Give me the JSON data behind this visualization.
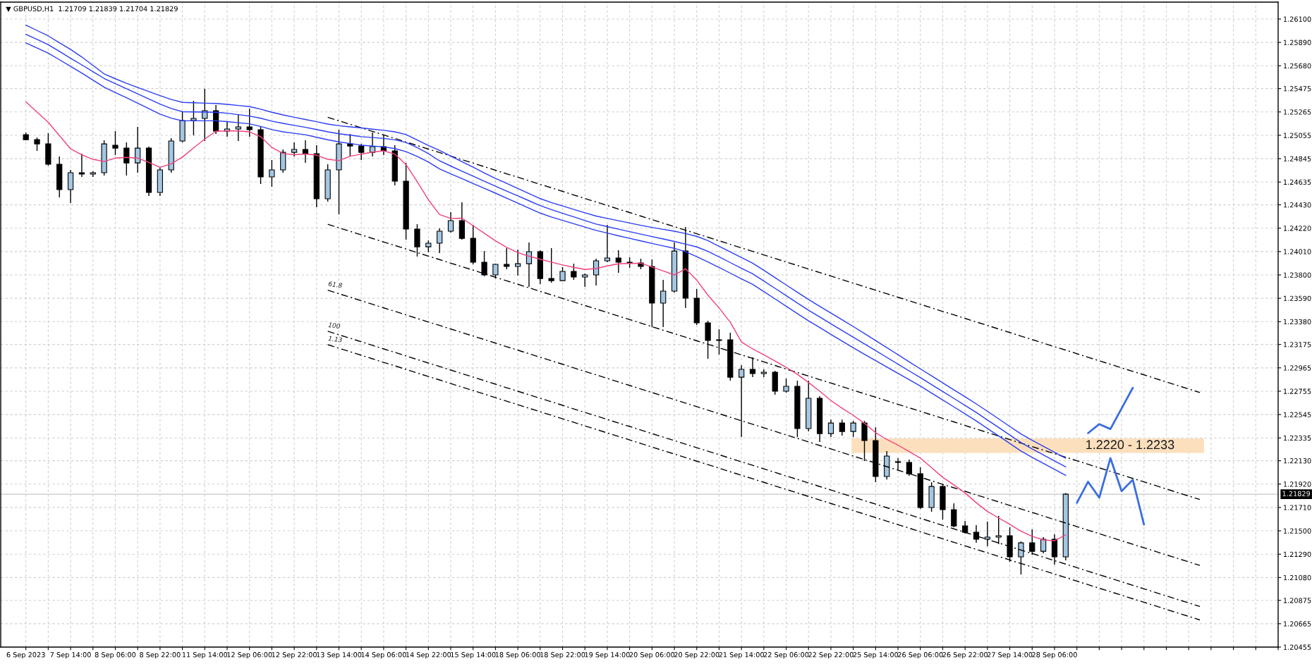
{
  "chart_data": {
    "type": "candlestick",
    "title": "▼ GBPUSD,H1  1.21709 1.21839 1.21704 1.21829",
    "categories": [
      "6 Sep 2023",
      null,
      null,
      null,
      "7 Sep 14:00",
      null,
      null,
      null,
      "8 Sep 06:00",
      null,
      null,
      null,
      "8 Sep 22:00",
      null,
      null,
      null,
      "11 Sep 14:00",
      null,
      null,
      null,
      "12 Sep 06:00",
      null,
      null,
      null,
      "12 Sep 22:00",
      null,
      null,
      null,
      "13 Sep 14:00",
      null,
      null,
      null,
      "14 Sep 06:00",
      null,
      null,
      null,
      "14 Sep 22:00",
      null,
      null,
      null,
      "15 Sep 14:00",
      null,
      null,
      null,
      "18 Sep 06:00",
      null,
      null,
      null,
      "18 Sep 22:00",
      null,
      null,
      null,
      "19 Sep 14:00",
      null,
      null,
      null,
      "20 Sep 06:00",
      null,
      null,
      null,
      "20 Sep 22:00",
      null,
      null,
      null,
      "21 Sep 14:00",
      null,
      null,
      null,
      "22 Sep 06:00",
      null,
      null,
      null,
      "22 Sep 22:00",
      null,
      null,
      null,
      "25 Sep 14:00",
      null,
      null,
      null,
      "26 Sep 06:00",
      null,
      null,
      null,
      "26 Sep 22:00",
      null,
      null,
      null,
      "27 Sep 14:00",
      null,
      null,
      null,
      "28 Sep 06:00",
      null,
      null,
      null,
      null,
      null,
      null,
      null,
      null,
      null,
      null,
      null,
      null,
      null,
      null,
      null,
      null,
      null,
      null,
      null,
      null
    ],
    "ylim": [
      1.20455,
      1.26252
    ],
    "yticks": [
      {
        "value": 1.261,
        "label": "1.26100"
      },
      {
        "value": 1.2589,
        "label": "1.25890"
      },
      {
        "value": 1.2568,
        "label": "1.25680"
      },
      1.25475,
      1.25265,
      1.25055,
      1.24845,
      1.24635,
      {
        "value": 1.2443,
        "label": "1.24430"
      },
      {
        "value": 1.2422,
        "label": "1.24220"
      },
      {
        "value": 1.2401,
        "label": "1.24010"
      },
      {
        "value": 1.238,
        "label": "1.23800"
      },
      {
        "value": 1.2359,
        "label": "1.23590"
      },
      {
        "value": 1.2338,
        "label": "1.23380"
      },
      1.23175,
      1.22965,
      1.22755,
      1.22545,
      1.22335,
      {
        "value": 1.2213,
        "label": "1.22130"
      },
      {
        "value": 1.2192,
        "label": "1.21920"
      },
      {
        "value": 1.2171,
        "label": "1.21710"
      },
      {
        "value": 1.215,
        "label": "1.21500"
      },
      {
        "value": 1.2129,
        "label": "1.21290"
      },
      {
        "value": 1.2108,
        "label": "1.21080"
      },
      1.20875,
      1.20665,
      1.20455
    ],
    "grid": true,
    "series": [
      {
        "ohlc": [
          [
            1.25061,
            1.2508,
            1.2501,
            1.25016
          ],
          [
            1.25016,
            1.25035,
            1.24915,
            1.24978
          ],
          [
            1.24978,
            1.25074,
            1.24782,
            1.24795
          ],
          [
            1.24795,
            1.24864,
            1.24497,
            1.24567
          ],
          [
            1.24567,
            1.24744,
            1.24446,
            1.24719
          ],
          [
            1.24719,
            1.2489,
            1.24681,
            1.24706
          ],
          [
            1.24706,
            1.24731,
            1.24681,
            1.24719
          ],
          [
            1.24719,
            1.2501,
            1.24693,
            1.24978
          ],
          [
            1.24966,
            1.25093,
            1.24877,
            1.2494
          ],
          [
            1.2494,
            1.24991,
            1.24693,
            1.24807
          ],
          [
            1.24807,
            1.25131,
            1.24719,
            1.2494
          ],
          [
            1.2494,
            1.24953,
            1.2451,
            1.24541
          ],
          [
            1.24541,
            1.24763,
            1.2451,
            1.24744
          ],
          [
            1.24744,
            1.25029,
            1.24719,
            1.25004
          ],
          [
            1.25004,
            1.25264,
            1.24991,
            1.25188
          ],
          [
            1.25188,
            1.25365,
            1.25054,
            1.25207
          ],
          [
            1.25207,
            1.25473,
            1.25004,
            1.25276
          ],
          [
            1.25276,
            1.25327,
            1.25067,
            1.25093
          ],
          [
            1.25093,
            1.25175,
            1.25042,
            1.25112
          ],
          [
            1.25112,
            1.25238,
            1.25004,
            1.25131
          ],
          [
            1.25131,
            1.25295,
            1.25042,
            1.25105
          ],
          [
            1.25105,
            1.25131,
            1.24617,
            1.24681
          ],
          [
            1.24681,
            1.24833,
            1.24592,
            1.24744
          ],
          [
            1.24744,
            1.24928,
            1.24719,
            1.24902
          ],
          [
            1.24902,
            1.24991,
            1.24864,
            1.24928
          ],
          [
            1.24928,
            1.2501,
            1.24807,
            1.2489
          ],
          [
            1.2489,
            1.24966,
            1.24408,
            1.24484
          ],
          [
            1.24484,
            1.24795,
            1.24459,
            1.24744
          ],
          [
            1.24744,
            1.25105,
            1.24345,
            1.24978
          ],
          [
            1.24978,
            1.25067,
            1.24864,
            1.24959
          ],
          [
            1.24959,
            1.24978,
            1.24833,
            1.24902
          ],
          [
            1.24902,
            1.2508,
            1.24864,
            1.24953
          ],
          [
            1.24953,
            1.25061,
            1.24877,
            1.24915
          ],
          [
            1.24915,
            1.24966,
            1.24605,
            1.24643
          ],
          [
            1.24643,
            1.24807,
            1.24117,
            1.24212
          ],
          [
            1.24212,
            1.24256,
            1.23965,
            1.24053
          ],
          [
            1.24053,
            1.2411,
            1.24003,
            1.24085
          ],
          [
            1.24085,
            1.24218,
            1.23996,
            1.24193
          ],
          [
            1.24193,
            1.24364,
            1.2418,
            1.24288
          ],
          [
            1.24288,
            1.24453,
            1.24117,
            1.24129
          ],
          [
            1.24129,
            1.2425,
            1.23895,
            1.23914
          ],
          [
            1.23914,
            1.24015,
            1.23787,
            1.238
          ],
          [
            1.238,
            1.23901,
            1.23768,
            1.23895
          ],
          [
            1.23895,
            1.24041,
            1.23851,
            1.23876
          ],
          [
            1.23876,
            1.24028,
            1.23794,
            1.23901
          ],
          [
            1.23901,
            1.24091,
            1.23692,
            1.24009
          ],
          [
            1.24009,
            1.24022,
            1.23718,
            1.23768
          ],
          [
            1.23768,
            1.24041,
            1.2373,
            1.23749
          ],
          [
            1.23749,
            1.2387,
            1.23743,
            1.23832
          ],
          [
            1.23832,
            1.23901,
            1.23756,
            1.23781
          ],
          [
            1.23781,
            1.23813,
            1.23692,
            1.238
          ],
          [
            1.238,
            1.23946,
            1.23705,
            1.23927
          ],
          [
            1.23927,
            1.2425,
            1.23914,
            1.23952
          ],
          [
            1.23952,
            1.24022,
            1.23819,
            1.23914
          ],
          [
            1.23914,
            1.23958,
            1.23863,
            1.23908
          ],
          [
            1.23908,
            1.23946,
            1.23851,
            1.23876
          ],
          [
            1.23876,
            1.23939,
            1.23331,
            1.23547
          ],
          [
            1.23547,
            1.23756,
            1.23331,
            1.23654
          ],
          [
            1.23654,
            1.24091,
            1.23642,
            1.24015
          ],
          [
            1.24015,
            1.24231,
            1.23502,
            1.23591
          ],
          [
            1.23591,
            1.23673,
            1.2335,
            1.23369
          ],
          [
            1.23369,
            1.23388,
            1.23046,
            1.23211
          ],
          [
            1.23211,
            1.23312,
            1.23084,
            1.23217
          ],
          [
            1.23217,
            1.2328,
            1.2285,
            1.22881
          ],
          [
            1.22881,
            1.22989,
            1.22343,
            1.22951
          ],
          [
            1.22951,
            1.23059,
            1.22881,
            1.22913
          ],
          [
            1.22913,
            1.22951,
            1.22881,
            1.22926
          ],
          [
            1.22926,
            1.22938,
            1.22723,
            1.22755
          ],
          [
            1.22755,
            1.22869,
            1.22742,
            1.22799
          ],
          [
            1.22799,
            1.2285,
            1.22343,
            1.22419
          ],
          [
            1.22419,
            1.2285,
            1.22393,
            1.22691
          ],
          [
            1.22691,
            1.2271,
            1.22298,
            1.22374
          ],
          [
            1.22374,
            1.225,
            1.22343,
            1.22469
          ],
          [
            1.22469,
            1.225,
            1.22355,
            1.22393
          ],
          [
            1.22393,
            1.22488,
            1.22343,
            1.22469
          ],
          [
            1.22469,
            1.22488,
            1.22127,
            1.22311
          ],
          [
            1.22311,
            1.22431,
            1.21937,
            1.21988
          ],
          [
            1.21988,
            1.22216,
            1.21962,
            1.22172
          ],
          [
            1.22121,
            1.22153,
            1.22051,
            1.22115
          ],
          [
            1.22115,
            1.2214,
            1.21994,
            1.22013
          ],
          [
            1.22013,
            1.2207,
            1.21696,
            1.21709
          ],
          [
            1.21709,
            1.21937,
            1.21671,
            1.21899
          ],
          [
            1.21899,
            1.21918,
            1.21601,
            1.2169
          ],
          [
            1.2169,
            1.21747,
            1.21532,
            1.21544
          ],
          [
            1.21544,
            1.21589,
            1.21475,
            1.21487
          ],
          [
            1.21487,
            1.21551,
            1.21392,
            1.21424
          ],
          [
            1.21424,
            1.21582,
            1.21361,
            1.21443
          ],
          [
            1.21443,
            1.21633,
            1.2138,
            1.21456
          ],
          [
            1.21456,
            1.21532,
            1.21221,
            1.21266
          ],
          [
            1.21266,
            1.21405,
            1.21107,
            1.21392
          ],
          [
            1.21392,
            1.21513,
            1.21285,
            1.21316
          ],
          [
            1.21316,
            1.21443,
            1.21297,
            1.21424
          ],
          [
            1.21424,
            1.21468,
            1.21196,
            1.21266
          ],
          [
            1.21266,
            1.21839,
            1.21234,
            1.21829
          ],
          null,
          null,
          null,
          null,
          null,
          null,
          null,
          null,
          null,
          null,
          null,
          null,
          null,
          null,
          null,
          null,
          null,
          null,
          null
        ],
        "colors": [
          "#000000",
          "#000000",
          "#000000",
          "#000000",
          "#a3c6e3",
          "#000000",
          "#a3c6e3",
          "#a3c6e3",
          "#000000",
          "#000000",
          "#a3c6e3",
          "#000000",
          "#a3c6e3",
          "#a3c6e3",
          "#a3c6e3",
          "#a3c6e3",
          "#a3c6e3",
          "#000000",
          "#a3c6e3",
          "#a3c6e3",
          "#000000",
          "#000000",
          "#a3c6e3",
          "#a3c6e3",
          "#a3c6e3",
          "#000000",
          "#000000",
          "#a3c6e3",
          "#a3c6e3",
          "#000000",
          "#000000",
          "#a3c6e3",
          "#000000",
          "#000000",
          "#000000",
          "#000000",
          "#a3c6e3",
          "#a3c6e3",
          "#a3c6e3",
          "#000000",
          "#000000",
          "#000000",
          "#a3c6e3",
          "#000000",
          "#a3c6e3",
          "#a3c6e3",
          "#000000",
          "#000000",
          "#a3c6e3",
          "#000000",
          "#a3c6e3",
          "#a3c6e3",
          "#a3c6e3",
          "#000000",
          "#000000",
          "#000000",
          "#000000",
          "#a3c6e3",
          "#a3c6e3",
          "#000000",
          "#000000",
          "#000000",
          "#a3c6e3",
          "#000000",
          "#a3c6e3",
          "#000000",
          "#a3c6e3",
          "#000000",
          "#a3c6e3",
          "#000000",
          "#a3c6e3",
          "#000000",
          "#a3c6e3",
          "#000000",
          "#a3c6e3",
          "#000000",
          "#000000",
          "#a3c6e3",
          "#000000",
          "#000000",
          "#000000",
          "#a3c6e3",
          "#000000",
          "#000000",
          "#000000",
          "#000000",
          "#a3c6e3",
          "#a3c6e3",
          "#000000",
          "#a3c6e3",
          "#000000",
          "#a3c6e3",
          "#000000",
          "#a3c6e3",
          null,
          null,
          null,
          null,
          null,
          null,
          null,
          null,
          null,
          null,
          null,
          null,
          null,
          null,
          null,
          null,
          null,
          null,
          null
        ]
      },
      {
        "type": "line",
        "color": "#f2407f",
        "values": [
          1.25356,
          1.25264,
          1.25172,
          1.25053,
          1.24933,
          1.2488,
          1.24839,
          1.24819,
          1.2485,
          1.24857,
          1.2485,
          1.24811,
          1.24767,
          1.24799,
          1.24859,
          1.24942,
          1.25021,
          1.25091,
          1.25094,
          1.25094,
          1.25086,
          1.25043,
          1.24946,
          1.24891,
          1.2488,
          1.24887,
          1.24877,
          1.24839,
          1.24827,
          1.24867,
          1.24885,
          1.24904,
          1.24915,
          1.24886,
          1.24791,
          1.24639,
          1.24475,
          1.24343,
          1.24308,
          1.2431,
          1.24242,
          1.24175,
          1.24107,
          1.24048,
          1.24001,
          1.23968,
          1.23941,
          1.23915,
          1.2389,
          1.23868,
          1.23849,
          1.23857,
          1.23881,
          1.239,
          1.23903,
          1.23905,
          1.23871,
          1.23836,
          1.238,
          1.23855,
          1.23753,
          1.23618,
          1.23503,
          1.23375,
          1.23198,
          1.23135,
          1.23082,
          1.23027,
          1.2297,
          1.22906,
          1.22833,
          1.22755,
          1.22671,
          1.22602,
          1.22538,
          1.22466,
          1.22382,
          1.22321,
          1.2227,
          1.22212,
          1.22154,
          1.22068,
          1.21981,
          1.21913,
          1.2184,
          1.21753,
          1.21674,
          1.21616,
          1.21558,
          1.21496,
          1.21451,
          1.21418,
          1.2141,
          1.21464,
          null,
          null,
          null,
          null,
          null,
          null,
          null,
          null,
          null,
          null,
          null,
          null,
          null,
          null,
          null,
          null,
          null,
          null,
          null
        ]
      },
      {
        "type": "line",
        "color": "#2b3df5",
        "values": [
          1.26046,
          1.25997,
          1.25948,
          1.25887,
          1.25827,
          1.25759,
          1.25683,
          1.25607,
          1.25563,
          1.25522,
          1.25484,
          1.25448,
          1.25412,
          1.25377,
          1.25351,
          1.25348,
          1.25344,
          1.25341,
          1.25333,
          1.25323,
          1.25313,
          1.2529,
          1.25262,
          1.25238,
          1.25217,
          1.25197,
          1.25177,
          1.25156,
          1.25141,
          1.25131,
          1.25121,
          1.2511,
          1.251,
          1.25086,
          1.25062,
          1.25012,
          1.24964,
          1.24919,
          1.24869,
          1.24818,
          1.24768,
          1.24717,
          1.24668,
          1.24623,
          1.24577,
          1.24531,
          1.24486,
          1.2445,
          1.2442,
          1.24389,
          1.24359,
          1.24329,
          1.24308,
          1.24287,
          1.24267,
          1.24246,
          1.24227,
          1.2421,
          1.24193,
          1.24172,
          1.24147,
          1.24108,
          1.24057,
          1.24007,
          1.23956,
          1.23906,
          1.23842,
          1.23776,
          1.2371,
          1.23644,
          1.23579,
          1.23518,
          1.23457,
          1.23397,
          1.23336,
          1.23274,
          1.2321,
          1.23147,
          1.23083,
          1.23019,
          1.22956,
          1.22893,
          1.2283,
          1.22767,
          1.22705,
          1.22641,
          1.22574,
          1.22506,
          1.22438,
          1.22371,
          1.22314,
          1.2226,
          1.22206,
          1.22152,
          null,
          null,
          null,
          null,
          null,
          null,
          null,
          null,
          null,
          null,
          null,
          null,
          null,
          null,
          null,
          null,
          null,
          null,
          null
        ]
      },
      {
        "type": "line",
        "color": "#2b3df5",
        "values": [
          1.25963,
          1.25917,
          1.2587,
          1.25809,
          1.25748,
          1.25688,
          1.25627,
          1.25566,
          1.25519,
          1.25474,
          1.25428,
          1.25382,
          1.25336,
          1.25296,
          1.25267,
          1.25265,
          1.25264,
          1.25262,
          1.25253,
          1.25241,
          1.25228,
          1.25208,
          1.25182,
          1.25162,
          1.25144,
          1.25127,
          1.25107,
          1.25086,
          1.25069,
          1.25056,
          1.25043,
          1.25035,
          1.25027,
          1.25014,
          1.2499,
          1.24944,
          1.24891,
          1.24825,
          1.24779,
          1.24733,
          1.24688,
          1.24642,
          1.24597,
          1.24553,
          1.2451,
          1.24467,
          1.24423,
          1.24387,
          1.24354,
          1.24322,
          1.24289,
          1.24257,
          1.24234,
          1.24211,
          1.24189,
          1.24167,
          1.24145,
          1.24123,
          1.24101,
          1.24077,
          1.24052,
          1.24012,
          1.23962,
          1.23911,
          1.2386,
          1.2381,
          1.23746,
          1.2368,
          1.23614,
          1.23548,
          1.23483,
          1.23422,
          1.23361,
          1.23301,
          1.2324,
          1.2318,
          1.2312,
          1.23059,
          1.22998,
          1.22937,
          1.22877,
          1.22814,
          1.22752,
          1.2269,
          1.22627,
          1.22564,
          1.22496,
          1.22429,
          1.22361,
          1.22293,
          1.22236,
          1.22182,
          1.22129,
          1.22075,
          null,
          null,
          null,
          null,
          null,
          null,
          null,
          null,
          null,
          null,
          null,
          null,
          null,
          null,
          null,
          null,
          null,
          null,
          null
        ]
      },
      {
        "type": "line",
        "color": "#2b3df5",
        "values": [
          1.25886,
          1.2584,
          1.25793,
          1.25734,
          1.25675,
          1.25615,
          1.25551,
          1.25488,
          1.25439,
          1.25392,
          1.25344,
          1.25295,
          1.25246,
          1.25209,
          1.25185,
          1.25185,
          1.25185,
          1.25185,
          1.25178,
          1.25168,
          1.25158,
          1.25135,
          1.25106,
          1.25086,
          1.25073,
          1.2506,
          1.25037,
          1.25015,
          1.24996,
          1.24981,
          1.24966,
          1.24958,
          1.24951,
          1.24936,
          1.24908,
          1.24865,
          1.24815,
          1.24753,
          1.24709,
          1.24666,
          1.24622,
          1.24578,
          1.24535,
          1.2449,
          1.24445,
          1.244,
          1.24356,
          1.2432,
          1.2429,
          1.2426,
          1.2423,
          1.242,
          1.24176,
          1.24152,
          1.24129,
          1.24106,
          1.24083,
          1.24061,
          1.24039,
          1.24008,
          1.23964,
          1.23917,
          1.23867,
          1.23816,
          1.23765,
          1.23715,
          1.23651,
          1.23585,
          1.23519,
          1.23453,
          1.23388,
          1.23327,
          1.23266,
          1.23206,
          1.23145,
          1.23087,
          1.2303,
          1.22972,
          1.22915,
          1.22858,
          1.22801,
          1.22738,
          1.22676,
          1.22614,
          1.22551,
          1.22488,
          1.2242,
          1.22353,
          1.22285,
          1.22217,
          1.2216,
          1.22106,
          1.22052,
          1.21998,
          null,
          null,
          null,
          null,
          null,
          null,
          null,
          null,
          null,
          null,
          null,
          null,
          null,
          null,
          null,
          null,
          null,
          null,
          null
        ]
      },
      {
        "type": "line",
        "color": "#000000",
        "line_style": "dashdot",
        "values": [
          null,
          null,
          null,
          null,
          null,
          null,
          null,
          null,
          null,
          null,
          null,
          null,
          null,
          null,
          null,
          null,
          null,
          null,
          null,
          null,
          null,
          null,
          null,
          null,
          null,
          null,
          null,
          1.25217,
          1.25185,
          1.25154,
          1.25122,
          1.2509,
          1.25058,
          1.25027,
          1.24995,
          1.24963,
          1.24931,
          1.249,
          1.24868,
          1.24836,
          1.24805,
          1.24773,
          1.24741,
          1.24709,
          1.24678,
          1.24646,
          1.24614,
          1.24583,
          1.24551,
          1.24519,
          1.24487,
          1.24456,
          1.24424,
          1.24392,
          1.24361,
          1.24329,
          1.24297,
          1.24265,
          1.24234,
          1.24202,
          1.2417,
          1.24139,
          1.24107,
          1.24075,
          1.24043,
          1.24012,
          1.2398,
          1.23948,
          1.23916,
          1.23885,
          1.23853,
          1.23821,
          1.2379,
          1.23758,
          1.23726,
          1.23694,
          1.23663,
          1.23631,
          1.23599,
          1.23568,
          1.23536,
          1.23504,
          1.23472,
          1.23441,
          1.23409,
          1.23377,
          1.23346,
          1.23314,
          1.23282,
          1.2325,
          1.23219,
          1.23187,
          1.23155,
          1.23124,
          1.23092,
          1.2306,
          1.23028,
          1.22997,
          1.22965,
          1.22933,
          1.22902,
          1.2287,
          1.22838,
          1.22806,
          1.22775,
          1.22743,
          null,
          null,
          null,
          null,
          null,
          null,
          null
        ]
      },
      {
        "type": "line",
        "color": "#000000",
        "line_style": "dashdot",
        "values": [
          null,
          null,
          null,
          null,
          null,
          null,
          null,
          null,
          null,
          null,
          null,
          null,
          null,
          null,
          null,
          null,
          null,
          null,
          null,
          null,
          null,
          null,
          null,
          null,
          null,
          null,
          null,
          1.24255,
          1.24223,
          1.24192,
          1.2416,
          1.24128,
          1.24096,
          1.24065,
          1.24033,
          1.24001,
          1.23969,
          1.23938,
          1.23906,
          1.23874,
          1.23843,
          1.23811,
          1.23779,
          1.23747,
          1.23716,
          1.23684,
          1.23652,
          1.23621,
          1.23589,
          1.23557,
          1.23525,
          1.23494,
          1.23462,
          1.2343,
          1.23399,
          1.23367,
          1.23335,
          1.23303,
          1.23272,
          1.2324,
          1.23208,
          1.23177,
          1.23145,
          1.23113,
          1.23081,
          1.2305,
          1.23018,
          1.22986,
          1.22954,
          1.22923,
          1.22891,
          1.22859,
          1.22828,
          1.22796,
          1.22764,
          1.22732,
          1.22701,
          1.22669,
          1.22637,
          1.22606,
          1.22574,
          1.22542,
          1.2251,
          1.22479,
          1.22447,
          1.22415,
          1.22384,
          1.22352,
          1.2232,
          1.22288,
          1.22257,
          1.22225,
          1.22193,
          1.22162,
          1.2213,
          1.22098,
          1.22066,
          1.22035,
          1.22003,
          1.21971,
          1.2194,
          1.21908,
          1.21876,
          1.21844,
          1.21813,
          1.21781,
          null,
          null,
          null,
          null,
          null,
          null,
          null
        ]
      },
      {
        "type": "line",
        "color": "#000000",
        "line_style": "dashdot",
        "values": [
          null,
          null,
          null,
          null,
          null,
          null,
          null,
          null,
          null,
          null,
          null,
          null,
          null,
          null,
          null,
          null,
          null,
          null,
          null,
          null,
          null,
          null,
          null,
          null,
          null,
          null,
          null,
          1.23663,
          1.23631,
          1.236,
          1.23568,
          1.23536,
          1.23504,
          1.23473,
          1.23441,
          1.23409,
          1.23377,
          1.23346,
          1.23314,
          1.23282,
          1.23251,
          1.23219,
          1.23187,
          1.23155,
          1.23124,
          1.23092,
          1.2306,
          1.23029,
          1.22997,
          1.22965,
          1.22933,
          1.22902,
          1.2287,
          1.22838,
          1.22807,
          1.22775,
          1.22743,
          1.22711,
          1.2268,
          1.22648,
          1.22616,
          1.22585,
          1.22553,
          1.22521,
          1.22489,
          1.22458,
          1.22426,
          1.22394,
          1.22362,
          1.22331,
          1.22299,
          1.22267,
          1.22236,
          1.22204,
          1.22172,
          1.2214,
          1.22109,
          1.22077,
          1.22045,
          1.22014,
          1.21982,
          1.2195,
          1.21918,
          1.21887,
          1.21855,
          1.21823,
          1.21792,
          1.2176,
          1.21728,
          1.21696,
          1.21665,
          1.21633,
          1.21601,
          1.2157,
          1.21538,
          1.21506,
          1.21474,
          1.21443,
          1.21411,
          1.21379,
          1.21348,
          1.21316,
          1.21284,
          1.21252,
          1.21221,
          1.21189,
          null,
          null,
          null,
          null,
          null,
          null,
          null
        ]
      },
      {
        "type": "line",
        "color": "#000000",
        "line_style": "dashdot",
        "values": [
          null,
          null,
          null,
          null,
          null,
          null,
          null,
          null,
          null,
          null,
          null,
          null,
          null,
          null,
          null,
          null,
          null,
          null,
          null,
          null,
          null,
          null,
          null,
          null,
          null,
          null,
          null,
          1.23294,
          1.23262,
          1.23231,
          1.23199,
          1.23167,
          1.23135,
          1.23104,
          1.23072,
          1.2304,
          1.23008,
          1.22977,
          1.22945,
          1.22913,
          1.22882,
          1.2285,
          1.22818,
          1.22786,
          1.22755,
          1.22723,
          1.22691,
          1.2266,
          1.22628,
          1.22596,
          1.22564,
          1.22533,
          1.22501,
          1.22469,
          1.22438,
          1.22406,
          1.22374,
          1.22342,
          1.22311,
          1.22279,
          1.22247,
          1.22216,
          1.22184,
          1.22152,
          1.2212,
          1.22089,
          1.22057,
          1.22025,
          1.21993,
          1.21962,
          1.2193,
          1.21898,
          1.21867,
          1.21835,
          1.21803,
          1.21771,
          1.2174,
          1.21708,
          1.21676,
          1.21645,
          1.21613,
          1.21581,
          1.21549,
          1.21518,
          1.21486,
          1.21454,
          1.21423,
          1.21391,
          1.21359,
          1.21327,
          1.21296,
          1.21264,
          1.21232,
          1.21201,
          1.21169,
          1.21137,
          1.21105,
          1.21074,
          1.21042,
          1.2101,
          1.20979,
          1.20947,
          1.20915,
          1.20883,
          1.20852,
          1.2082,
          null,
          null,
          null,
          null,
          null,
          null,
          null
        ]
      },
      {
        "type": "line",
        "color": "#000000",
        "line_style": "dashdot",
        "values": [
          null,
          null,
          null,
          null,
          null,
          null,
          null,
          null,
          null,
          null,
          null,
          null,
          null,
          null,
          null,
          null,
          null,
          null,
          null,
          null,
          null,
          null,
          null,
          null,
          null,
          null,
          null,
          1.23173,
          1.23141,
          1.2311,
          1.23078,
          1.23046,
          1.23014,
          1.22983,
          1.22951,
          1.22919,
          1.22887,
          1.22856,
          1.22824,
          1.22792,
          1.22761,
          1.22729,
          1.22697,
          1.22665,
          1.22634,
          1.22602,
          1.2257,
          1.22539,
          1.22507,
          1.22475,
          1.22443,
          1.22412,
          1.2238,
          1.22348,
          1.22317,
          1.22285,
          1.22253,
          1.22221,
          1.2219,
          1.22158,
          1.22126,
          1.22095,
          1.22063,
          1.22031,
          1.21999,
          1.21968,
          1.21936,
          1.21904,
          1.21872,
          1.21841,
          1.21809,
          1.21777,
          1.21746,
          1.21714,
          1.21682,
          1.2165,
          1.21619,
          1.21587,
          1.21555,
          1.21524,
          1.21492,
          1.2146,
          1.21428,
          1.21397,
          1.21365,
          1.21333,
          1.21302,
          1.2127,
          1.21238,
          1.21206,
          1.21175,
          1.21143,
          1.21111,
          1.2108,
          1.21048,
          1.21016,
          1.20984,
          1.20953,
          1.20921,
          1.20889,
          1.20858,
          1.20826,
          1.20794,
          1.20762,
          1.20731,
          1.20699,
          null,
          null,
          null,
          null,
          null,
          null,
          null
        ]
      },
      {
        "type": "line",
        "color": "#3a6ddf",
        "line_style": "solid",
        "values": [
          null,
          null,
          null,
          null,
          null,
          null,
          null,
          null,
          null,
          null,
          null,
          null,
          null,
          null,
          null,
          null,
          null,
          null,
          null,
          null,
          null,
          null,
          null,
          null,
          null,
          null,
          null,
          null,
          null,
          null,
          null,
          null,
          null,
          null,
          null,
          null,
          null,
          null,
          null,
          null,
          null,
          null,
          null,
          null,
          null,
          null,
          null,
          null,
          null,
          null,
          null,
          null,
          null,
          null,
          null,
          null,
          null,
          null,
          null,
          null,
          null,
          null,
          null,
          null,
          null,
          null,
          null,
          null,
          null,
          null,
          null,
          null,
          null,
          null,
          null,
          null,
          null,
          null,
          null,
          null,
          null,
          null,
          null,
          null,
          null,
          null,
          null,
          null,
          null,
          null,
          null,
          null,
          null,
          null,
          null,
          1.22378,
          1.22459,
          1.22415,
          1.226,
          1.22785,
          null,
          null,
          null,
          null,
          null,
          null,
          null,
          null,
          null,
          null,
          null,
          null,
          null
        ]
      },
      {
        "type": "line",
        "color": "#3a6ddf",
        "line_style": "solid",
        "values": [
          null,
          null,
          null,
          null,
          null,
          null,
          null,
          null,
          null,
          null,
          null,
          null,
          null,
          null,
          null,
          null,
          null,
          null,
          null,
          null,
          null,
          null,
          null,
          null,
          null,
          null,
          null,
          null,
          null,
          null,
          null,
          null,
          null,
          null,
          null,
          null,
          null,
          null,
          null,
          null,
          null,
          null,
          null,
          null,
          null,
          null,
          null,
          null,
          null,
          null,
          null,
          null,
          null,
          null,
          null,
          null,
          null,
          null,
          null,
          null,
          null,
          null,
          null,
          null,
          null,
          null,
          null,
          null,
          null,
          null,
          null,
          null,
          null,
          null,
          null,
          null,
          null,
          null,
          null,
          null,
          null,
          null,
          null,
          null,
          null,
          null,
          null,
          null,
          null,
          null,
          null,
          null,
          null,
          null,
          1.21752,
          1.21941,
          1.21798,
          1.22153,
          1.21857,
          1.21959,
          1.21557,
          null,
          null,
          null,
          null,
          null,
          null,
          null,
          null,
          null,
          null,
          null,
          null
        ]
      }
    ],
    "bands": [
      {
        "axis": "y",
        "from": 1.222,
        "to": 1.2233,
        "label": "1.2220 - 1.2233",
        "color": "#fce0bd"
      }
    ],
    "ref_lines": [
      {
        "axis": "y",
        "value": 1.21829,
        "label": "1.21829",
        "color": "#c8c8c8"
      }
    ],
    "annotations": [
      {
        "text": "61.8",
        "y": 1.23663
      },
      {
        "text": "100",
        "y": 1.23294
      },
      {
        "text": "1.13",
        "y": 1.23173
      }
    ]
  }
}
